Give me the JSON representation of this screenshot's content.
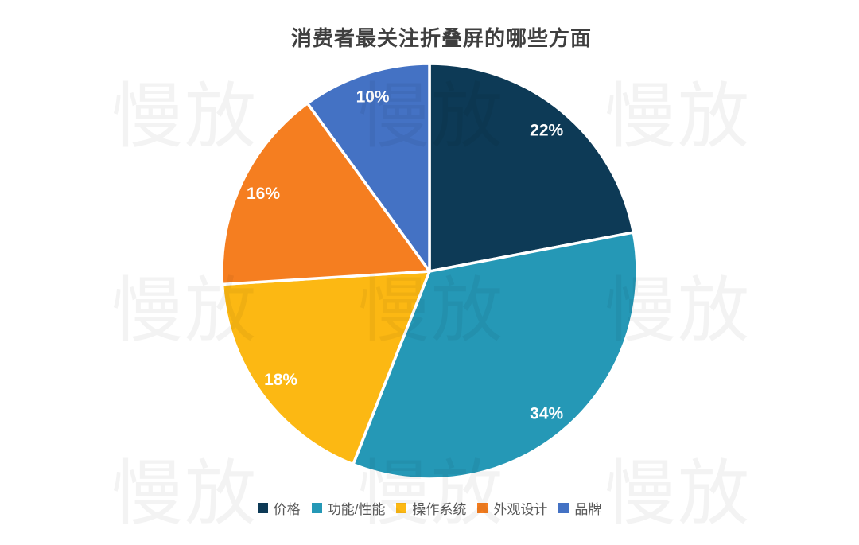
{
  "watermark": {
    "text": "慢放"
  },
  "chart_data": {
    "type": "pie",
    "title": "消费者最关注折叠屏的哪些方面",
    "categories": [
      "价格",
      "功能/性能",
      "操作系统",
      "外观设计",
      "品牌"
    ],
    "values": [
      22,
      34,
      18,
      16,
      10
    ],
    "labels": [
      "22%",
      "34%",
      "18%",
      "16%",
      "10%"
    ],
    "colors": [
      "#0d3a56",
      "#2598b6",
      "#fcb813",
      "#f57e20",
      "#4472c4"
    ],
    "start_angle": "top",
    "direction": "clockwise",
    "slice_border_color": "#ffffff",
    "slice_label_color": "#ffffff",
    "title_color": "#3f3f3f",
    "legend_text_color": "#595959",
    "legend_position": "bottom",
    "background_color": "#ffffff"
  }
}
